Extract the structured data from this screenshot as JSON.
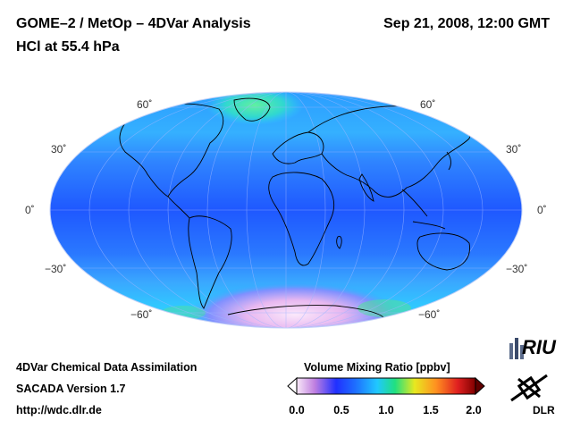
{
  "header": {
    "title_line1": "GOME–2 / MetOp – 4DVar Analysis",
    "title_line2": "HCl at 55.4 hPa",
    "datetime": "Sep 21, 2008, 12:00 GMT"
  },
  "map": {
    "projection": "mollweide",
    "lat_labels": [
      "60˚",
      "30˚",
      "0˚",
      "−30˚",
      "−60˚"
    ],
    "colors": {
      "ocean_band": "#1e5cff",
      "tropics": "#2f7dff",
      "midlat": "#3aa8ff",
      "polar_high": "#f0c8f0",
      "coast": "#000000"
    }
  },
  "footer": {
    "line1": "4DVar Chemical Data Assimilation",
    "line2": "SACADA Version 1.7",
    "line3": "http://wdc.dlr.de"
  },
  "colorbar": {
    "title": "Volume Mixing Ratio [ppbv]",
    "ticks": [
      "0.0",
      "0.5",
      "1.0",
      "1.5",
      "2.0"
    ],
    "stops": [
      "#f8e8f8",
      "#c080e0",
      "#2030ff",
      "#1e70ff",
      "#20c8ff",
      "#20e080",
      "#e8e820",
      "#ff9020",
      "#e02020",
      "#800000"
    ]
  },
  "logos": {
    "riu": "RIU",
    "dlr": "DLR"
  }
}
